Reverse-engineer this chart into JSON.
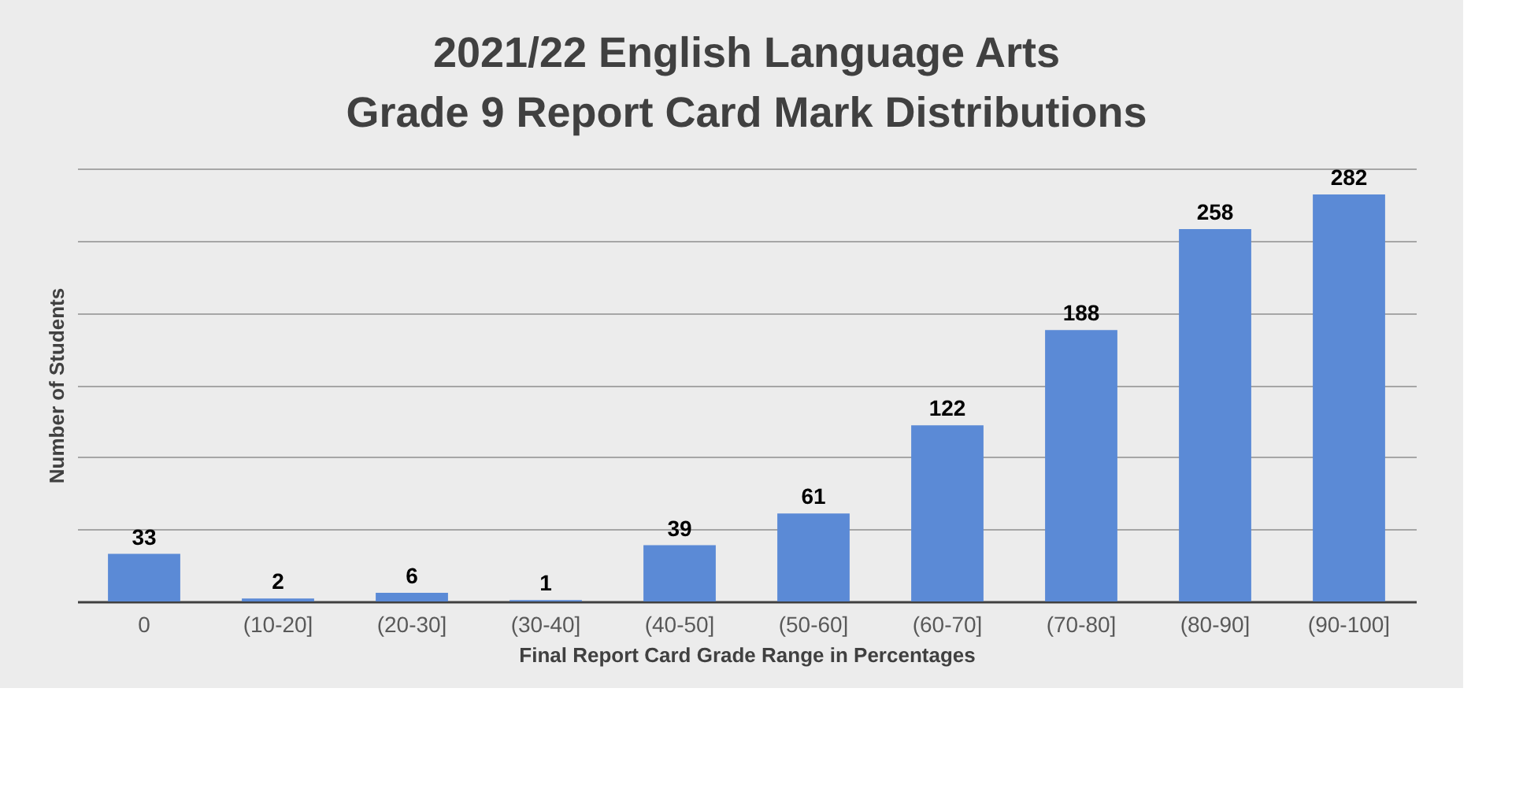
{
  "chart_data": {
    "type": "bar",
    "title": [
      "2021/22 English Language Arts",
      "Grade 9 Report Card Mark Distributions"
    ],
    "xlabel": "Final Report Card Grade Range in Percentages",
    "ylabel": "Number of Students",
    "categories": [
      "0",
      "(10-20]",
      "(20-30]",
      "(30-40]",
      "(40-50]",
      "(50-60]",
      "(60-70]",
      "(70-80]",
      "(80-90]",
      "(90-100]"
    ],
    "values": [
      33,
      2,
      6,
      1,
      39,
      61,
      122,
      188,
      258,
      282
    ],
    "color": "#5b8ad6",
    "data_labels": true,
    "ylim": [
      0,
      300
    ],
    "yticks": [
      0,
      {
        "value": 50,
        "label": null
      },
      {
        "value": 100,
        "label": null
      },
      {
        "value": 150,
        "label": null
      },
      {
        "value": 200,
        "label": null
      },
      {
        "value": 250,
        "label": null
      },
      {
        "value": 300,
        "label": null
      }
    ],
    "tick_labels": "x",
    "grid": "y"
  }
}
